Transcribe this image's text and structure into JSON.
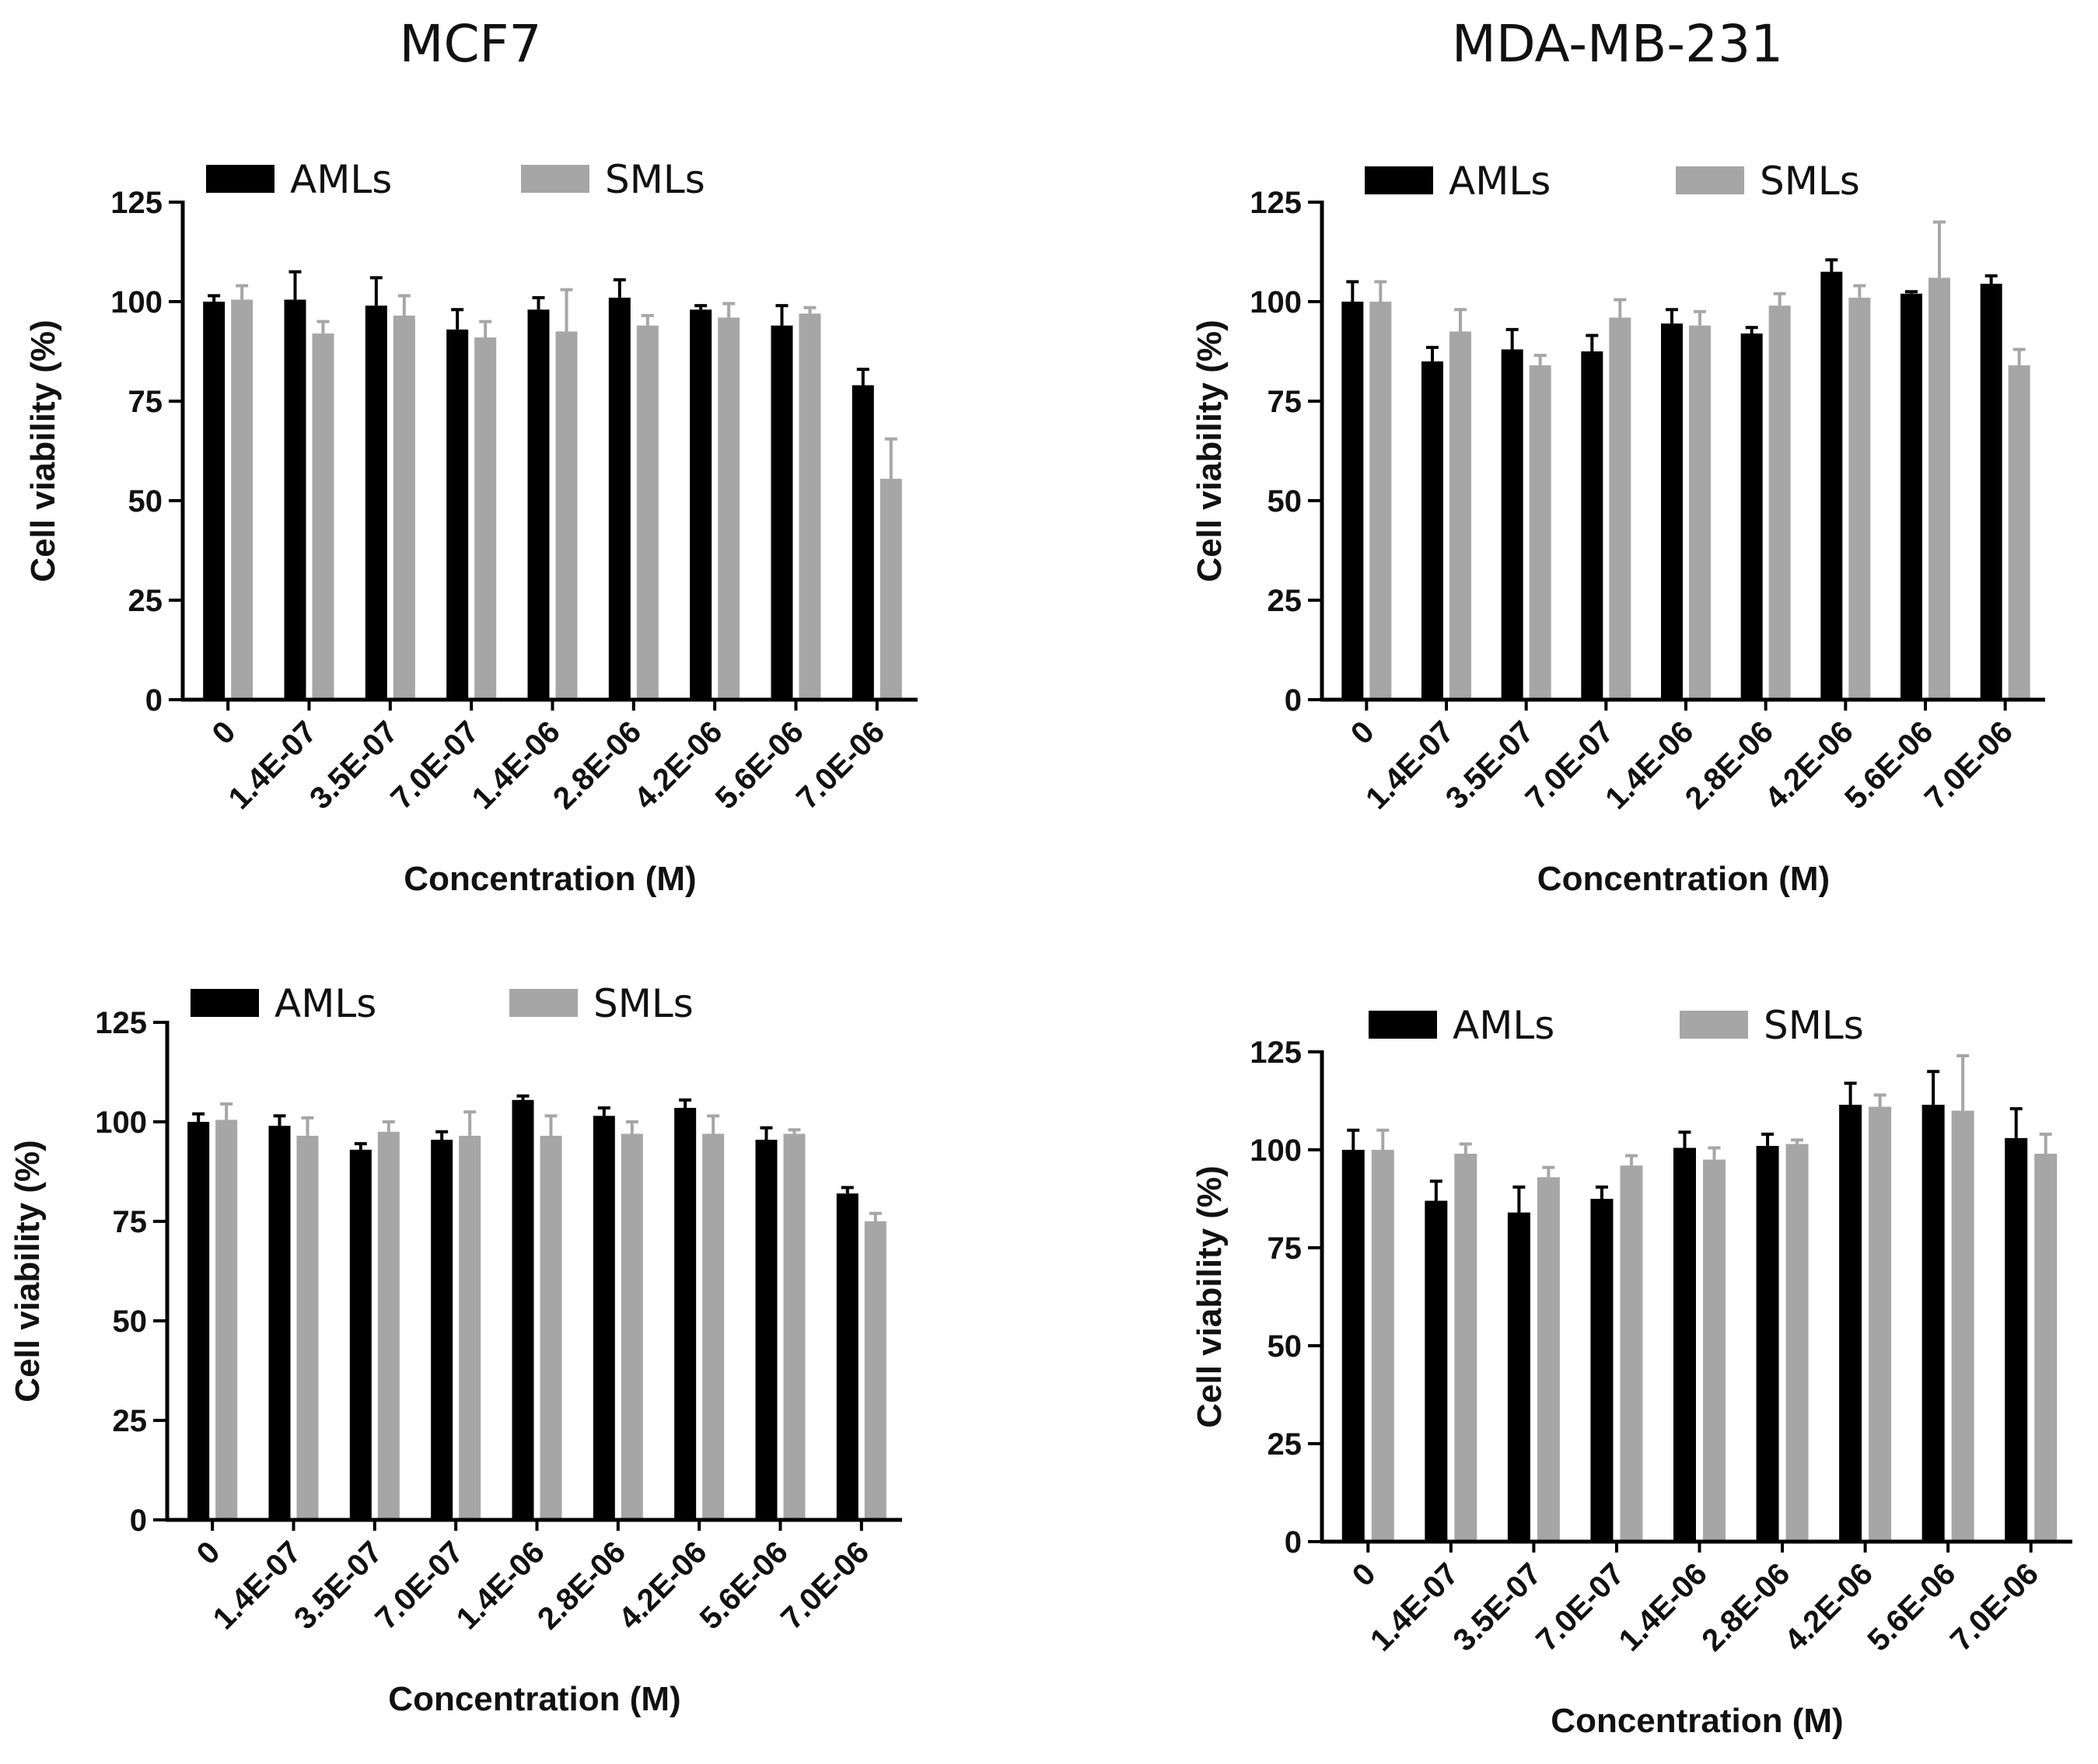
{
  "titles": {
    "left": "MCF7",
    "right": "MDA-MB-231"
  },
  "colors": {
    "AMLs": "#000000",
    "SMLs": "#a6a6a6",
    "axis": "#000000"
  },
  "chart_data": [
    {
      "type": "bar",
      "panel": "top-left",
      "title": "MCF7",
      "xlabel": "Concentration (M)",
      "ylabel": "Cell viability (%)",
      "ylim": [
        0,
        125
      ],
      "yticks": [
        0,
        25,
        50,
        75,
        100,
        125
      ],
      "grid": false,
      "legend": "top-left",
      "categories": [
        "0",
        "1.4E-07",
        "3.5E-07",
        "7.0E-07",
        "1.4E-06",
        "2.8E-06",
        "4.2E-06",
        "5.6E-06",
        "7.0E-06"
      ],
      "series": [
        {
          "name": "AMLs",
          "values": [
            100,
            100.5,
            99,
            93,
            98,
            101,
            98,
            94,
            79
          ],
          "errors": [
            1.5,
            7,
            7,
            5,
            3,
            4.5,
            1,
            5,
            4
          ]
        },
        {
          "name": "SMLs",
          "values": [
            100.5,
            92,
            96.5,
            91,
            92.5,
            94,
            96,
            97,
            55.5
          ],
          "errors": [
            3.5,
            3,
            5,
            4,
            10.5,
            2.5,
            3.5,
            1.5,
            10
          ]
        }
      ]
    },
    {
      "type": "bar",
      "panel": "top-right",
      "title": "MDA-MB-231",
      "xlabel": "Concentration (M)",
      "ylabel": "Cell viability (%)",
      "ylim": [
        0,
        125
      ],
      "yticks": [
        0,
        25,
        50,
        75,
        100,
        125
      ],
      "grid": false,
      "legend": "top-left",
      "categories": [
        "0",
        "1.4E-07",
        "3.5E-07",
        "7.0E-07",
        "1.4E-06",
        "2.8E-06",
        "4.2E-06",
        "5.6E-06",
        "7.0E-06"
      ],
      "series": [
        {
          "name": "AMLs",
          "values": [
            100,
            85,
            88,
            87.5,
            94.5,
            92,
            107.5,
            102,
            104.5
          ],
          "errors": [
            5,
            3.5,
            5,
            4,
            3.5,
            1.5,
            3,
            0.5,
            2
          ]
        },
        {
          "name": "SMLs",
          "values": [
            100,
            92.5,
            84,
            96,
            94,
            99,
            101,
            106,
            84
          ],
          "errors": [
            5,
            5.5,
            2.5,
            4.5,
            3.5,
            3,
            3,
            14,
            4
          ]
        }
      ]
    },
    {
      "type": "bar",
      "panel": "bottom-left",
      "title": "",
      "xlabel": "Concentration (M)",
      "ylabel": "Cell viability (%)",
      "ylim": [
        0,
        125
      ],
      "yticks": [
        0,
        25,
        50,
        75,
        100,
        125
      ],
      "grid": false,
      "legend": "top-left",
      "categories": [
        "0",
        "1.4E-07",
        "3.5E-07",
        "7.0E-07",
        "1.4E-06",
        "2.8E-06",
        "4.2E-06",
        "5.6E-06",
        "7.0E-06"
      ],
      "series": [
        {
          "name": "AMLs",
          "values": [
            100,
            99,
            93,
            95.5,
            105.5,
            101.5,
            103.5,
            95.5,
            82
          ],
          "errors": [
            2,
            2.5,
            1.5,
            2,
            1,
            2,
            2,
            3,
            1.5
          ]
        },
        {
          "name": "SMLs",
          "values": [
            100.5,
            96.5,
            97.5,
            96.5,
            96.5,
            97,
            97,
            97,
            75
          ],
          "errors": [
            4,
            4.5,
            2.5,
            6,
            5,
            3,
            4.5,
            1,
            2
          ]
        }
      ]
    },
    {
      "type": "bar",
      "panel": "bottom-right",
      "title": "",
      "xlabel": "Concentration (M)",
      "ylabel": "Cell viability (%)",
      "ylim": [
        0,
        125
      ],
      "yticks": [
        0,
        25,
        50,
        75,
        100,
        125
      ],
      "grid": false,
      "legend": "top-left",
      "categories": [
        "0",
        "1.4E-07",
        "3.5E-07",
        "7.0E-07",
        "1.4E-06",
        "2.8E-06",
        "4.2E-06",
        "5.6E-06",
        "7.0E-06"
      ],
      "series": [
        {
          "name": "AMLs",
          "values": [
            100,
            87,
            84,
            87.5,
            100.5,
            101,
            111.5,
            111.5,
            103
          ],
          "errors": [
            5,
            5,
            6.5,
            3,
            4,
            3,
            5.5,
            8.5,
            7.5
          ]
        },
        {
          "name": "SMLs",
          "values": [
            100,
            99,
            93,
            96,
            97.5,
            101.5,
            111,
            110,
            99
          ],
          "errors": [
            5,
            2.5,
            2.5,
            2.5,
            3,
            1,
            3,
            14,
            5
          ]
        }
      ]
    }
  ]
}
